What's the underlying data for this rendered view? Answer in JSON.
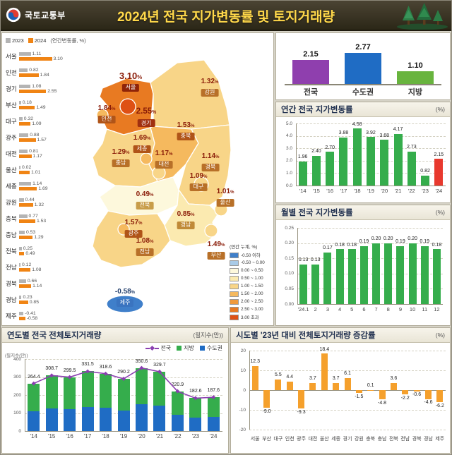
{
  "header": {
    "agency": "국토교통부",
    "title": "2024년 전국 지가변동률 및 토지거래량"
  },
  "left_panel": {
    "note": "(연간변동률, %)",
    "map_legend_title": "(연간 누계, %)",
    "map_legend": [
      {
        "label": "-0.50 이하",
        "color": "#3f7fca"
      },
      {
        "label": "-0.50 ~ 0.00",
        "color": "#a9cbe8"
      },
      {
        "label": "0.00 ~ 0.50",
        "color": "#fdf8dc"
      },
      {
        "label": "0.50 ~ 1.00",
        "color": "#fbeab0"
      },
      {
        "label": "1.00 ~ 1.50",
        "color": "#f8d588"
      },
      {
        "label": "1.50 ~ 2.00",
        "color": "#f5b95e"
      },
      {
        "label": "2.00 ~ 2.50",
        "color": "#f09a3c"
      },
      {
        "label": "2.50 ~ 3.00",
        "color": "#e87a22"
      },
      {
        "label": "3.00 초과",
        "color": "#de5014"
      }
    ]
  },
  "chart_data": [
    {
      "id": "region_annual_rates",
      "type": "bar",
      "orientation": "horizontal",
      "categories": [
        "서울",
        "인천",
        "경기",
        "부산",
        "대구",
        "광주",
        "대전",
        "울산",
        "세종",
        "강원",
        "충북",
        "충남",
        "전북",
        "전남",
        "경북",
        "경남",
        "제주"
      ],
      "series": [
        {
          "name": "2023",
          "color": "#b4b4b4",
          "values": [
            1.11,
            0.82,
            1.08,
            0.18,
            0.32,
            0.88,
            0.81,
            0.02,
            1.14,
            0.44,
            0.77,
            0.53,
            0.25,
            0.12,
            0.66,
            0.23,
            -0.41
          ]
        },
        {
          "name": "2024",
          "color": "#f08414",
          "values": [
            3.1,
            1.84,
            2.55,
            1.49,
            1.09,
            1.57,
            1.17,
            1.01,
            1.69,
            1.32,
            1.53,
            1.29,
            0.49,
            1.08,
            1.14,
            0.85,
            -0.58
          ]
        }
      ]
    },
    {
      "id": "map_annual_rates",
      "type": "heatmap",
      "unit": "%",
      "regions": [
        {
          "id": "seoul",
          "name": "서울",
          "value": 3.1
        },
        {
          "id": "incheon",
          "name": "인천",
          "value": 1.84
        },
        {
          "id": "gyeonggi",
          "name": "경기",
          "value": 2.55
        },
        {
          "id": "gangwon",
          "name": "강원",
          "value": 1.32
        },
        {
          "id": "chungbuk",
          "name": "충북",
          "value": 1.53
        },
        {
          "id": "sejong",
          "name": "세종",
          "value": 1.69
        },
        {
          "id": "chungnam",
          "name": "충남",
          "value": 1.29
        },
        {
          "id": "daejeon",
          "name": "대전",
          "value": 1.17
        },
        {
          "id": "gyeongbuk",
          "name": "경북",
          "value": 1.14
        },
        {
          "id": "daegu",
          "name": "대구",
          "value": 1.09
        },
        {
          "id": "jeonbuk",
          "name": "전북",
          "value": 0.49
        },
        {
          "id": "ulsan",
          "name": "울산",
          "value": 1.01
        },
        {
          "id": "gwangju",
          "name": "광주",
          "value": 1.57
        },
        {
          "id": "gyeongnam",
          "name": "경남",
          "value": 0.85
        },
        {
          "id": "jeonnam",
          "name": "전남",
          "value": 1.08
        },
        {
          "id": "busan",
          "name": "부산",
          "value": 1.49
        },
        {
          "id": "jeju",
          "name": "제주",
          "value": -0.58
        }
      ]
    },
    {
      "id": "summary",
      "type": "bar",
      "categories": [
        "전국",
        "수도권",
        "지방"
      ],
      "values": [
        2.15,
        2.77,
        1.1
      ],
      "colors": [
        "#8f3fae",
        "#1f6cc4",
        "#68b43e"
      ]
    },
    {
      "id": "annual",
      "type": "bar",
      "title": "연간 전국 지가변동률",
      "unit": "(%)",
      "categories": [
        "'14",
        "'15",
        "'16",
        "'17",
        "'18",
        "'19",
        "'20",
        "'21",
        "'22",
        "'23",
        "'24"
      ],
      "values": [
        1.96,
        2.4,
        2.7,
        3.88,
        4.58,
        3.92,
        3.68,
        4.17,
        2.73,
        0.82,
        2.15
      ],
      "ylim": [
        0,
        5
      ],
      "yticks": [
        0,
        1,
        2,
        3,
        4,
        5
      ],
      "bar_color": "#35ad4c",
      "highlight_color": "#e8392e"
    },
    {
      "id": "monthly",
      "type": "bar",
      "title": "월별 전국 지가변동률",
      "unit": "(%)",
      "categories": [
        "'24.1",
        "2",
        "3",
        "4",
        "5",
        "6",
        "7",
        "8",
        "9",
        "10",
        "11",
        "12"
      ],
      "values": [
        0.13,
        0.13,
        0.17,
        0.18,
        0.18,
        0.19,
        0.2,
        0.2,
        0.19,
        0.2,
        0.19,
        0.18
      ],
      "ylim": [
        0,
        0.25
      ],
      "yticks": [
        0,
        0.05,
        0.1,
        0.15,
        0.2,
        0.25
      ],
      "bar_color": "#35ad4c"
    },
    {
      "id": "volume",
      "type": "bar",
      "title": "연도별 전국 전체토지거래량",
      "unit": "(필지수(만))",
      "axis_note": "(필지수(만))",
      "categories": [
        "'14",
        "'15",
        "'16",
        "'17",
        "'18",
        "'19",
        "'20",
        "'21",
        "'22",
        "'23",
        "'24"
      ],
      "series": [
        {
          "name": "전국",
          "type": "line",
          "color": "#8a3fb0",
          "values": [
            264.4,
            308.7,
            299.5,
            331.5,
            318.6,
            290.2,
            350.6,
            329.7,
            220.9,
            182.6,
            187.6
          ]
        },
        {
          "name": "지방",
          "type": "bar",
          "color": "#35ad4c",
          "values": [
            154.4,
            183.7,
            179.5,
            196.5,
            188.6,
            175.2,
            200.6,
            189.7,
            130.9,
            107.6,
            107.6
          ]
        },
        {
          "name": "수도권",
          "type": "bar",
          "color": "#1f6cc4",
          "values": [
            110.0,
            125.0,
            120.0,
            135.0,
            130.0,
            115.0,
            150.0,
            140.0,
            90.0,
            75.0,
            80.0
          ]
        }
      ],
      "ylim": [
        0,
        400
      ],
      "yticks": [
        0,
        100,
        200,
        300,
        400
      ]
    },
    {
      "id": "regional_change",
      "type": "bar",
      "title": "시도별 '23년 대비 전체토지거래량 증감률",
      "unit": "(%)",
      "categories": [
        "서울",
        "부산",
        "대구",
        "인천",
        "광주",
        "대전",
        "울산",
        "세종",
        "경기",
        "강원",
        "충북",
        "충남",
        "전북",
        "전남",
        "경북",
        "경남",
        "제주"
      ],
      "values": [
        12.3,
        -9.0,
        5.5,
        4.4,
        -9.3,
        3.7,
        18.4,
        3.7,
        6.1,
        -1.5,
        0.1,
        -4.8,
        3.6,
        -2.2,
        -0.6,
        -4.6,
        -6.2
      ],
      "ylim": [
        -20,
        20
      ],
      "yticks": [
        20,
        10,
        0,
        -10,
        -20
      ],
      "bar_color": "#f5a02c"
    }
  ]
}
